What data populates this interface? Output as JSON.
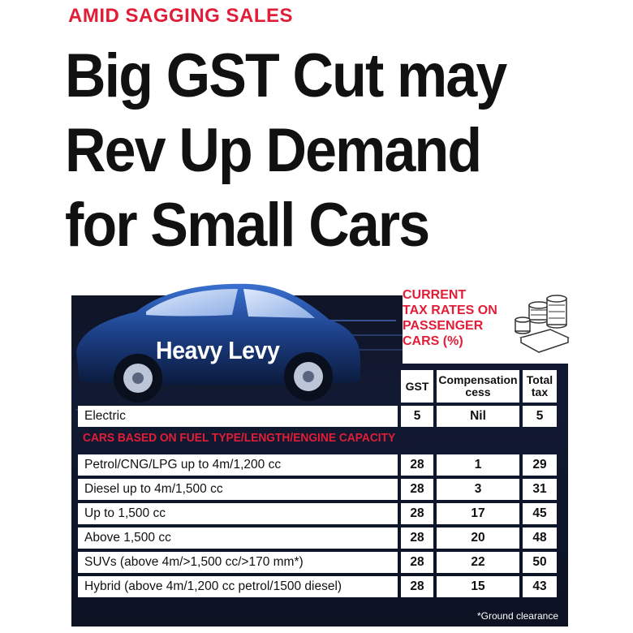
{
  "kicker": "AMID SAGGING SALES",
  "headline": {
    "line1": "Big GST Cut may",
    "line2": "Rev Up Demand",
    "line3": "for Small Cars"
  },
  "graphic": {
    "car_label": "Heavy Levy",
    "icon": "money-stack-icon"
  },
  "info_title": {
    "line1": "CURRENT",
    "line2": "TAX RATES ON",
    "line3": "PASSENGER",
    "line4": "CARS (%)"
  },
  "table": {
    "headers": {
      "gst": "GST",
      "cess_line1": "Compensation",
      "cess_line2": "cess",
      "total_line1": "Total",
      "total_line2": "tax"
    },
    "electric": {
      "name": "Electric",
      "gst": "5",
      "cess": "Nil",
      "total": "5"
    },
    "section_label": "CARS BASED ON FUEL TYPE/LENGTH/ENGINE CAPACITY",
    "rows": [
      {
        "name": "Petrol/CNG/LPG up to 4m/1,200 cc",
        "gst": "28",
        "cess": "1",
        "total": "29"
      },
      {
        "name": "Diesel up to 4m/1,500 cc",
        "gst": "28",
        "cess": "3",
        "total": "31"
      },
      {
        "name": "Up to 1,500 cc",
        "gst": "28",
        "cess": "17",
        "total": "45"
      },
      {
        "name": "Above 1,500 cc",
        "gst": "28",
        "cess": "20",
        "total": "48"
      },
      {
        "name": "SUVs (above 4m/>1,500 cc/>170 mm*)",
        "gst": "28",
        "cess": "22",
        "total": "50"
      },
      {
        "name": "Hybrid (above 4m/1,200 cc petrol/1500 diesel)",
        "gst": "28",
        "cess": "15",
        "total": "43"
      }
    ],
    "footnote": "*Ground clearance"
  },
  "colors": {
    "accent_red": "#e11d38",
    "panel_dark": "#0f1426",
    "car_blue": "#1f4fa8"
  }
}
